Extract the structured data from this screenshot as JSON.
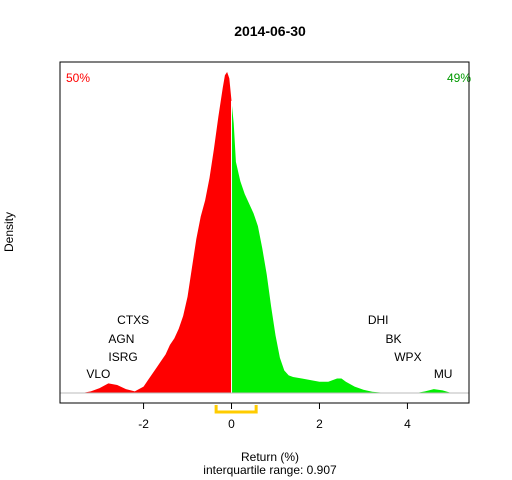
{
  "chart_data": {
    "type": "area",
    "title": "2014-06-30",
    "xlabel": "Return (%)",
    "ylabel": "Density",
    "subtitle": "interquartile range: 0.907",
    "xlim": [
      -3.9,
      5.4
    ],
    "x_ticks": [
      -2,
      0,
      2,
      4
    ],
    "x_tick_labels": [
      "-2",
      "0",
      "2",
      "4"
    ],
    "ylim": [
      0,
      1.0
    ],
    "grid": false,
    "split_at": 0,
    "left_pct_label": "50%",
    "right_pct_label": "49%",
    "colors": {
      "negative": "#ff0000",
      "positive": "#00ee00",
      "iqr": "#ffcc00",
      "axis": "#000000",
      "baseline": "#bbbbbb",
      "divider": "#ffffff"
    },
    "density": {
      "x": [
        -3.4,
        -3.2,
        -3.0,
        -2.8,
        -2.6,
        -2.4,
        -2.2,
        -2.0,
        -1.9,
        -1.8,
        -1.7,
        -1.6,
        -1.5,
        -1.4,
        -1.3,
        -1.2,
        -1.1,
        -1.0,
        -0.9,
        -0.8,
        -0.7,
        -0.6,
        -0.5,
        -0.4,
        -0.3,
        -0.2,
        -0.15,
        -0.1,
        -0.05,
        0.0,
        0.05,
        0.1,
        0.2,
        0.3,
        0.4,
        0.5,
        0.6,
        0.7,
        0.8,
        0.9,
        1.0,
        1.1,
        1.2,
        1.3,
        1.4,
        1.6,
        1.8,
        2.0,
        2.2,
        2.4,
        2.5,
        2.6,
        2.8,
        3.0,
        3.2,
        3.5,
        3.8,
        4.2,
        4.4,
        4.6,
        4.8,
        5.0
      ],
      "y": [
        0.0,
        0.005,
        0.015,
        0.03,
        0.025,
        0.012,
        0.005,
        0.02,
        0.04,
        0.06,
        0.08,
        0.1,
        0.12,
        0.15,
        0.17,
        0.2,
        0.24,
        0.3,
        0.39,
        0.48,
        0.55,
        0.6,
        0.67,
        0.76,
        0.86,
        0.95,
        0.99,
        1.0,
        0.98,
        0.91,
        0.84,
        0.72,
        0.66,
        0.62,
        0.59,
        0.56,
        0.52,
        0.45,
        0.37,
        0.27,
        0.18,
        0.11,
        0.07,
        0.055,
        0.05,
        0.045,
        0.04,
        0.035,
        0.035,
        0.045,
        0.045,
        0.035,
        0.02,
        0.01,
        0.004,
        0.0,
        0.0,
        0.0,
        0.005,
        0.012,
        0.008,
        0.0
      ]
    },
    "iqr": {
      "q1": -0.35,
      "q3": 0.56
    },
    "annotations_left": [
      {
        "label": "CTXS",
        "x": -2.6
      },
      {
        "label": "AGN",
        "x": -2.8
      },
      {
        "label": "ISRG",
        "x": -2.8
      },
      {
        "label": "VLO",
        "x": -3.3
      }
    ],
    "annotations_right": [
      {
        "label": "DHI",
        "x": 3.1
      },
      {
        "label": "BK",
        "x": 3.5
      },
      {
        "label": "WPX",
        "x": 3.7
      },
      {
        "label": "MU",
        "x": 4.6
      }
    ]
  }
}
